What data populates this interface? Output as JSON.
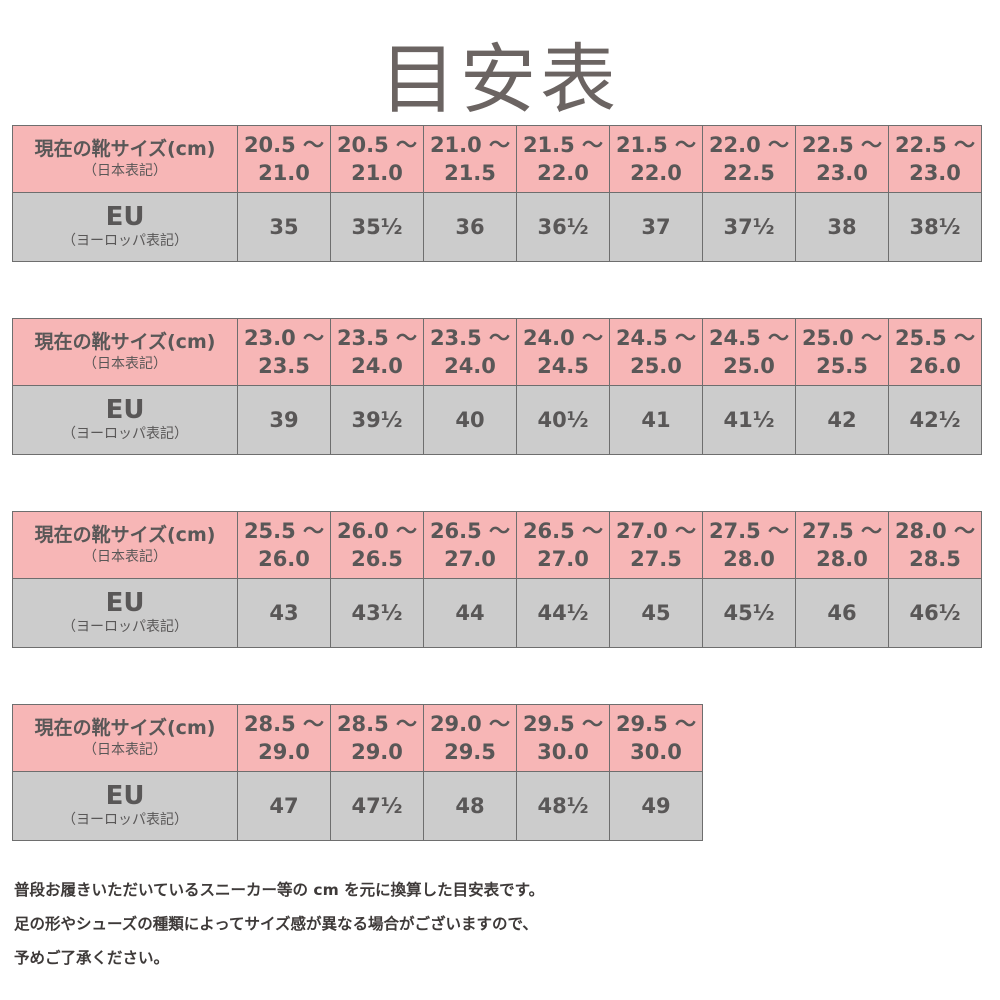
{
  "title": "目安表",
  "row_labels": {
    "jp_main": "現在の靴サイズ(cm)",
    "jp_sub": "（日本表記）",
    "eu_main": "EU",
    "eu_sub": "（ヨーロッパ表記）"
  },
  "colors": {
    "jp_row": "#f7b6b6",
    "eu_row": "#cccccc",
    "text": "#595757"
  },
  "tables": [
    {
      "jp": [
        [
          "20.5 ～",
          "21.0"
        ],
        [
          "20.5 ～",
          "21.0"
        ],
        [
          "21.0 ～",
          "21.5"
        ],
        [
          "21.5 ～",
          "22.0"
        ],
        [
          "21.5 ～",
          "22.0"
        ],
        [
          "22.0 ～",
          "22.5"
        ],
        [
          "22.5 ～",
          "23.0"
        ],
        [
          "22.5 ～",
          "23.0"
        ]
      ],
      "eu": [
        "35",
        "35½",
        "36",
        "36½",
        "37",
        "37½",
        "38",
        "38½"
      ]
    },
    {
      "jp": [
        [
          "23.0 ～",
          "23.5"
        ],
        [
          "23.5 ～",
          "24.0"
        ],
        [
          "23.5 ～",
          "24.0"
        ],
        [
          "24.0 ～",
          "24.5"
        ],
        [
          "24.5 ～",
          "25.0"
        ],
        [
          "24.5 ～",
          "25.0"
        ],
        [
          "25.0 ～",
          "25.5"
        ],
        [
          "25.5 ～",
          "26.0"
        ]
      ],
      "eu": [
        "39",
        "39½",
        "40",
        "40½",
        "41",
        "41½",
        "42",
        "42½"
      ]
    },
    {
      "jp": [
        [
          "25.5 ～",
          "26.0"
        ],
        [
          "26.0 ～",
          "26.5"
        ],
        [
          "26.5 ～",
          "27.0"
        ],
        [
          "26.5 ～",
          "27.0"
        ],
        [
          "27.0 ～",
          "27.5"
        ],
        [
          "27.5 ～",
          "28.0"
        ],
        [
          "27.5 ～",
          "28.0"
        ],
        [
          "28.0 ～",
          "28.5"
        ]
      ],
      "eu": [
        "43",
        "43½",
        "44",
        "44½",
        "45",
        "45½",
        "46",
        "46½"
      ]
    },
    {
      "jp": [
        [
          "28.5 ～",
          "29.0"
        ],
        [
          "28.5 ～",
          "29.0"
        ],
        [
          "29.0 ～",
          "29.5"
        ],
        [
          "29.5 ～",
          "30.0"
        ],
        [
          "29.5 ～",
          "30.0"
        ]
      ],
      "eu": [
        "47",
        "47½",
        "48",
        "48½",
        "49"
      ]
    }
  ],
  "notes": [
    "普段お履きいただいているスニーカー等の cm を元に換算した目安表です。",
    "足の形やシューズの種類によってサイズ感が異なる場合がございますので、",
    "予めご了承ください。"
  ]
}
